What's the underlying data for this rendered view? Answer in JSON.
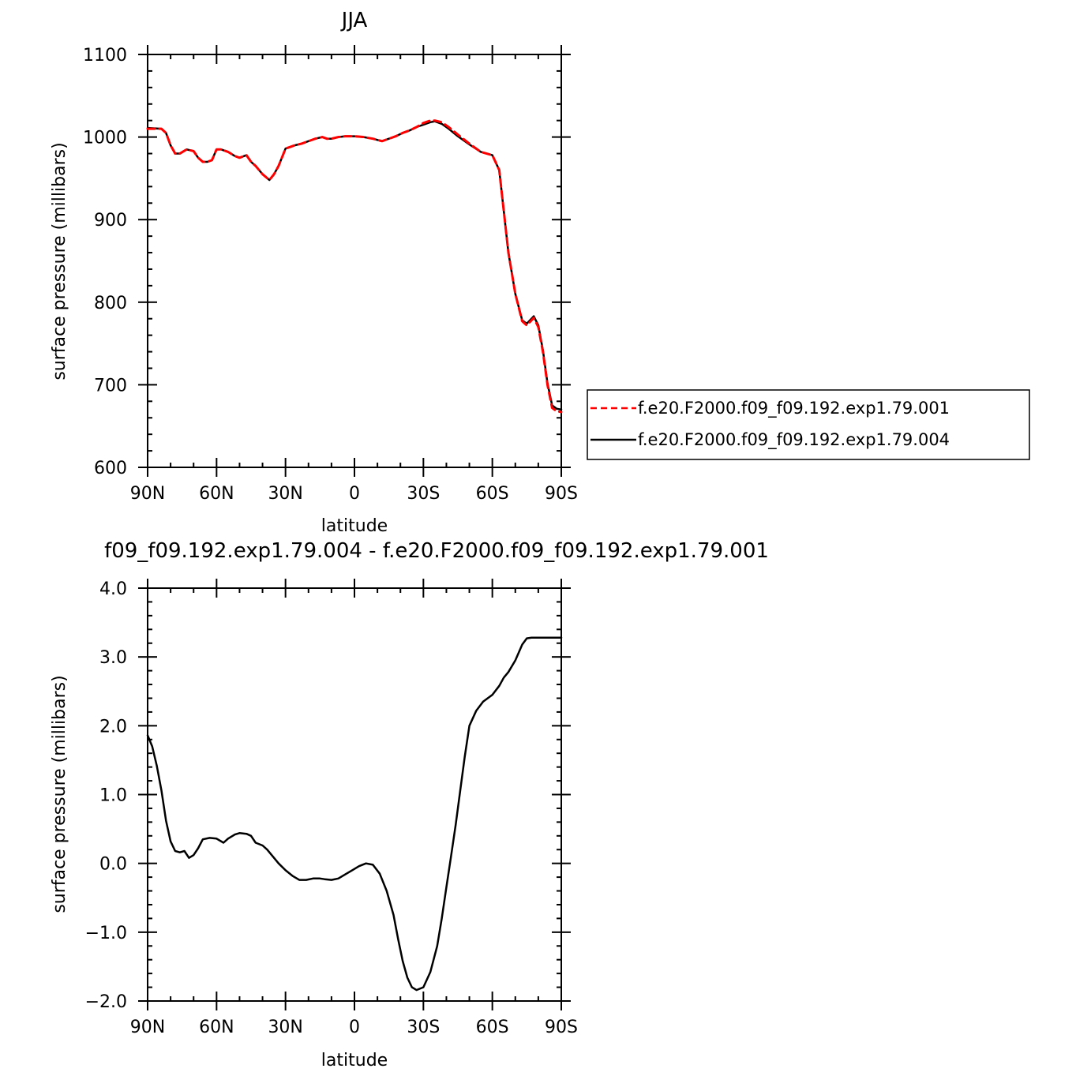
{
  "chart_data": [
    {
      "type": "line",
      "title": "JJA",
      "xlabel": "latitude",
      "ylabel": "surface pressure (millibars)",
      "xlim": [
        -90,
        90
      ],
      "ylim": [
        600,
        1100
      ],
      "x_ticks": [
        -90,
        -60,
        -30,
        0,
        30,
        60,
        90
      ],
      "x_tick_labels": [
        "90N",
        "60N",
        "30N",
        "0",
        "30S",
        "60S",
        "90S"
      ],
      "y_ticks": [
        600,
        700,
        800,
        900,
        1000,
        1100
      ],
      "y_tick_labels": [
        "600",
        "700",
        "800",
        "900",
        "1000",
        "1100"
      ],
      "legend_position": "right",
      "series": [
        {
          "name": "f.e20.F2000.f09_f09.192.exp1.79.001",
          "color": "#ff0000",
          "dash": "dashed",
          "x": [
            -90,
            -84,
            -82,
            -80,
            -78,
            -76,
            -73,
            -70,
            -68,
            -66,
            -64,
            -62,
            -60,
            -58,
            -55,
            -52,
            -50,
            -47,
            -45,
            -43,
            -40,
            -37,
            -35,
            -33,
            -30,
            -28,
            -26,
            -23,
            -20,
            -17,
            -14,
            -12,
            -10,
            -7,
            -4,
            0,
            4,
            8,
            12,
            15,
            18,
            21,
            24,
            27,
            30,
            33,
            35,
            38,
            41,
            45,
            50,
            55,
            60,
            63,
            65,
            67,
            70,
            73,
            75,
            77,
            78,
            80,
            82,
            84,
            86,
            88,
            90
          ],
          "y": [
            1010,
            1010,
            1005,
            990,
            980,
            980,
            985,
            983,
            975,
            970,
            970,
            972,
            985,
            985,
            982,
            977,
            975,
            978,
            970,
            965,
            955,
            948,
            955,
            965,
            986,
            988,
            990,
            992,
            995,
            998,
            1000,
            998,
            998,
            1000,
            1001,
            1001,
            1000,
            998,
            995,
            998,
            1001,
            1005,
            1008,
            1012,
            1017,
            1020,
            1020,
            1018,
            1012,
            1003,
            992,
            982,
            978,
            960,
            910,
            860,
            810,
            777,
            772,
            778,
            781,
            770,
            740,
            700,
            672,
            668,
            667
          ]
        },
        {
          "name": "f.e20.F2000.f09_f09.192.exp1.79.004",
          "color": "#000000",
          "dash": "solid",
          "x": [
            -90,
            -84,
            -82,
            -80,
            -78,
            -76,
            -73,
            -70,
            -68,
            -66,
            -64,
            -62,
            -60,
            -58,
            -55,
            -52,
            -50,
            -47,
            -45,
            -43,
            -40,
            -37,
            -35,
            -33,
            -30,
            -28,
            -26,
            -23,
            -20,
            -17,
            -14,
            -12,
            -10,
            -7,
            -4,
            0,
            4,
            8,
            12,
            15,
            18,
            21,
            24,
            27,
            30,
            33,
            35,
            38,
            41,
            45,
            50,
            55,
            60,
            63,
            65,
            67,
            70,
            73,
            75,
            77,
            78,
            80,
            82,
            84,
            86,
            88,
            90
          ],
          "y": [
            1011,
            1010,
            1005,
            990,
            980,
            980,
            985,
            983,
            975,
            970,
            970,
            972,
            985,
            985,
            982,
            977,
            975,
            978,
            970,
            965,
            955,
            948,
            955,
            965,
            986,
            988,
            990,
            992,
            995,
            998,
            1000,
            998,
            998,
            1000,
            1001,
            1001,
            1000,
            998,
            995,
            998,
            1001,
            1005,
            1008,
            1012,
            1015,
            1018,
            1019,
            1016,
            1010,
            1001,
            991,
            982,
            978,
            960,
            910,
            860,
            810,
            778,
            774,
            780,
            783,
            772,
            742,
            702,
            675,
            671,
            670
          ]
        }
      ]
    },
    {
      "type": "line",
      "title": "f09_f09.192.exp1.79.004 - f.e20.F2000.f09_f09.192.exp1.79.001",
      "xlabel": "latitude",
      "ylabel": "surface pressure (millibars)",
      "xlim": [
        -90,
        90
      ],
      "ylim": [
        -2.0,
        4.0
      ],
      "x_ticks": [
        -90,
        -60,
        -30,
        0,
        30,
        60,
        90
      ],
      "x_tick_labels": [
        "90N",
        "60N",
        "30N",
        "0",
        "30S",
        "60S",
        "90S"
      ],
      "y_ticks": [
        -2.0,
        -1.0,
        0.0,
        1.0,
        2.0,
        3.0,
        4.0
      ],
      "y_tick_labels": [
        "−2.0",
        "−1.0",
        "0.0",
        "1.0",
        "2.0",
        "3.0",
        "4.0"
      ],
      "series": [
        {
          "color": "#000000",
          "x": [
            -90,
            -88,
            -86,
            -84,
            -82,
            -80,
            -78,
            -76,
            -74,
            -72,
            -70,
            -68,
            -66,
            -63,
            -60,
            -57,
            -55,
            -52,
            -50,
            -47,
            -45,
            -43,
            -40,
            -38,
            -36,
            -33,
            -30,
            -27,
            -24,
            -21,
            -18,
            -15,
            -13,
            -10,
            -7,
            -4,
            -1,
            2,
            5,
            8,
            11,
            14,
            17,
            19,
            21,
            23,
            25,
            27,
            30,
            33,
            36,
            38,
            40,
            42,
            44,
            46,
            48,
            50,
            53,
            56,
            60,
            63,
            65,
            67,
            70,
            73,
            75,
            77,
            79,
            82,
            84,
            86,
            88,
            90
          ],
          "y": [
            1.86,
            1.7,
            1.42,
            1.06,
            0.62,
            0.32,
            0.18,
            0.16,
            0.18,
            0.08,
            0.12,
            0.22,
            0.35,
            0.37,
            0.36,
            0.3,
            0.36,
            0.42,
            0.44,
            0.43,
            0.4,
            0.3,
            0.26,
            0.2,
            0.12,
            0.0,
            -0.1,
            -0.18,
            -0.24,
            -0.24,
            -0.22,
            -0.22,
            -0.23,
            -0.24,
            -0.22,
            -0.16,
            -0.1,
            -0.04,
            0.0,
            -0.02,
            -0.15,
            -0.4,
            -0.75,
            -1.1,
            -1.42,
            -1.66,
            -1.8,
            -1.84,
            -1.8,
            -1.58,
            -1.2,
            -0.8,
            -0.35,
            0.1,
            0.55,
            1.05,
            1.55,
            2.0,
            2.22,
            2.35,
            2.45,
            2.58,
            2.7,
            2.78,
            2.95,
            3.18,
            3.27,
            3.28,
            3.28,
            3.28,
            3.28,
            3.28,
            3.28,
            3.28
          ]
        }
      ]
    }
  ]
}
